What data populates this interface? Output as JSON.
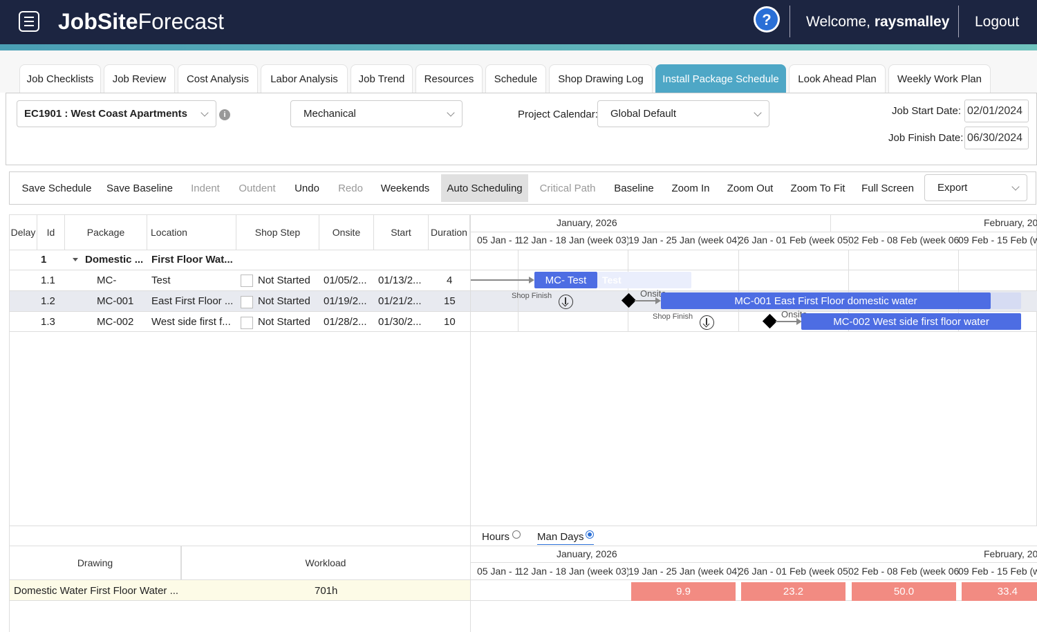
{
  "header": {
    "logo_bold": "JobSite",
    "logo_light": "Forecast",
    "welcome_prefix": "Welcome,",
    "username": "raysmalley",
    "logout": "Logout",
    "help": "?"
  },
  "tabs": [
    {
      "label": "Job Checklists"
    },
    {
      "label": "Job Review"
    },
    {
      "label": "Cost Analysis"
    },
    {
      "label": "Labor Analysis"
    },
    {
      "label": "Job Trend"
    },
    {
      "label": "Resources"
    },
    {
      "label": "Schedule"
    },
    {
      "label": "Shop Drawing Log"
    },
    {
      "label": "Install Package Schedule",
      "active": true
    },
    {
      "label": "Look Ahead Plan"
    },
    {
      "label": "Weekly Work Plan"
    }
  ],
  "filters": {
    "job": "EC1901 : West Coast Apartments",
    "trade": "Mechanical",
    "calendar_label": "Project Calendar:",
    "calendar": "Global Default",
    "start_label": "Job Start Date:",
    "start_date": "02/01/2024",
    "finish_label": "Job Finish Date:",
    "finish_date": "06/30/2024",
    "info": "i"
  },
  "toolbar": {
    "save_schedule": "Save Schedule",
    "save_baseline": "Save Baseline",
    "indent": "Indent",
    "outdent": "Outdent",
    "undo": "Undo",
    "redo": "Redo",
    "weekends": "Weekends",
    "auto_scheduling": "Auto Scheduling",
    "critical_path": "Critical Path",
    "baseline": "Baseline",
    "zoom_in": "Zoom In",
    "zoom_out": "Zoom Out",
    "zoom_to_fit": "Zoom To Fit",
    "full_screen": "Full Screen",
    "export": "Export"
  },
  "grid": {
    "columns": {
      "delay": "Delay",
      "id": "Id",
      "package": "Package",
      "location": "Location",
      "shop_step": "Shop Step",
      "onsite": "Onsite",
      "start": "Start",
      "duration": "Duration"
    },
    "group": {
      "id": "1",
      "package": "Domestic ...",
      "location": "First Floor Wat..."
    },
    "rows": [
      {
        "id": "1.1",
        "package": "MC-",
        "location": "Test",
        "shop_step": "Not Started",
        "onsite": "01/05/2...",
        "start": "01/13/2...",
        "duration": "4"
      },
      {
        "id": "1.2",
        "package": "MC-001",
        "location": "East First Floor ...",
        "shop_step": "Not Started",
        "onsite": "01/19/2...",
        "start": "01/21/2...",
        "duration": "15"
      },
      {
        "id": "1.3",
        "package": "MC-002",
        "location": "West side first f...",
        "shop_step": "Not Started",
        "onsite": "01/28/2...",
        "start": "01/30/2...",
        "duration": "10"
      }
    ]
  },
  "gantt": {
    "month1": "January, 2026",
    "month2": "February, 20",
    "weeks": [
      "05 Jan - 11",
      "12 Jan - 18 Jan (week 03)",
      "19 Jan - 25 Jan (week 04)",
      "26 Jan - 01 Feb (week 05)",
      "02 Feb - 08 Feb (week 06",
      "09 Feb - 15 Feb (w"
    ],
    "bar1": "MC- Test",
    "bar1_ghost": "Test",
    "bar2": "MC-001 East First Floor domestic water",
    "bar3": "MC-002 West side first floor water",
    "shop_finish": "Shop Finish",
    "onsite": "Onsite"
  },
  "bottom": {
    "hours": "Hours",
    "man_days": "Man Days",
    "drawing_col": "Drawing",
    "workload_col": "Workload",
    "drawing": "Domestic Water First Floor Water ...",
    "workload": "701h",
    "loads": [
      "9.9",
      "23.2",
      "50.0",
      "33.4"
    ],
    "load_colors": {
      "bar": "#f28b82",
      "row_bg": "#fdfbe7"
    }
  }
}
